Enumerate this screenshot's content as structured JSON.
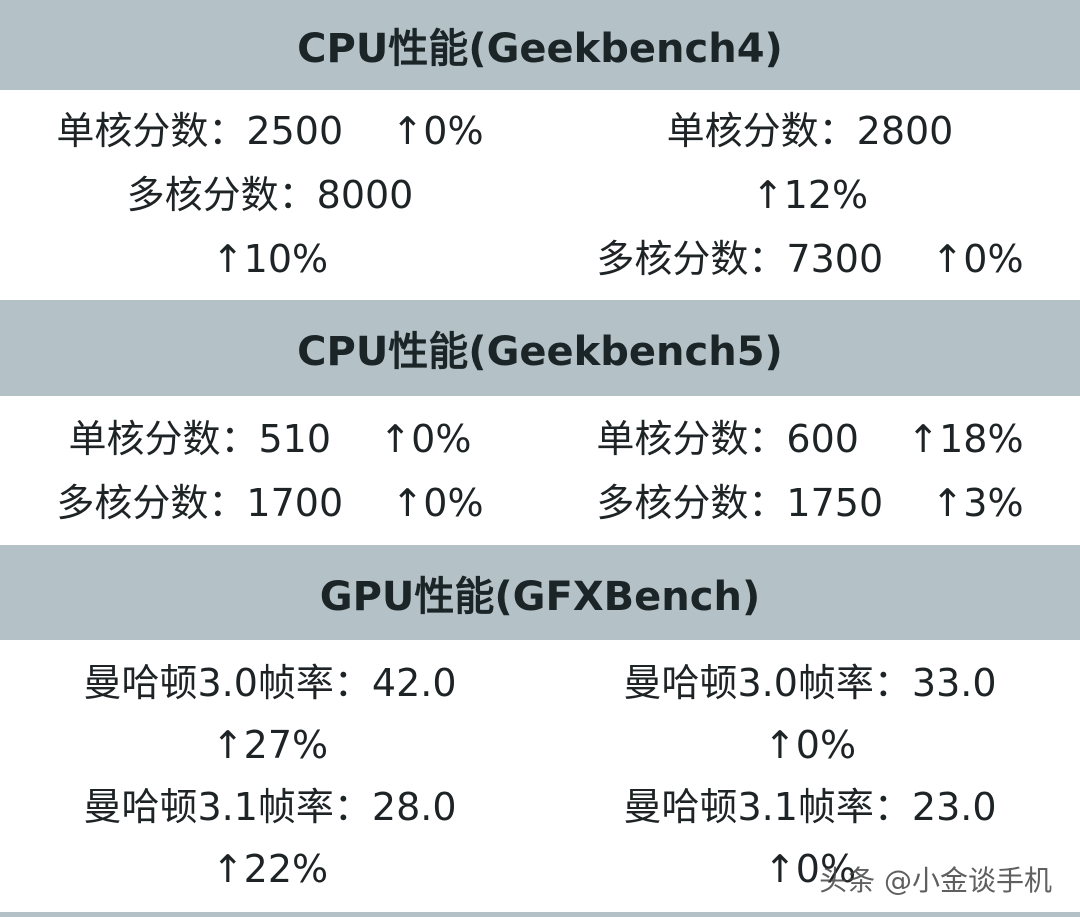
{
  "sections": [
    {
      "title": "CPU性能(Geekbench4)",
      "columns": [
        [
          "单核分数：2500    ↑0%",
          "多核分数：8000",
          "↑10%"
        ],
        [
          "单核分数：2800",
          "↑12%",
          "多核分数：7300    ↑0%"
        ]
      ]
    },
    {
      "title": "CPU性能(Geekbench5)",
      "columns": [
        [
          "单核分数：510    ↑0%",
          "多核分数：1700    ↑0%"
        ],
        [
          "单核分数：600    ↑18%",
          "多核分数：1750    ↑3%"
        ]
      ]
    },
    {
      "title": "GPU性能(GFXBench)",
      "columns": [
        [
          "曼哈顿3.0帧率：42.0",
          "↑27%",
          "曼哈顿3.1帧率：28.0",
          "↑22%"
        ],
        [
          "曼哈顿3.0帧率：33.0",
          "↑0%",
          "曼哈顿3.1帧率：23.0",
          "↑0%"
        ]
      ]
    }
  ],
  "watermark": "头条 @小金谈手机"
}
